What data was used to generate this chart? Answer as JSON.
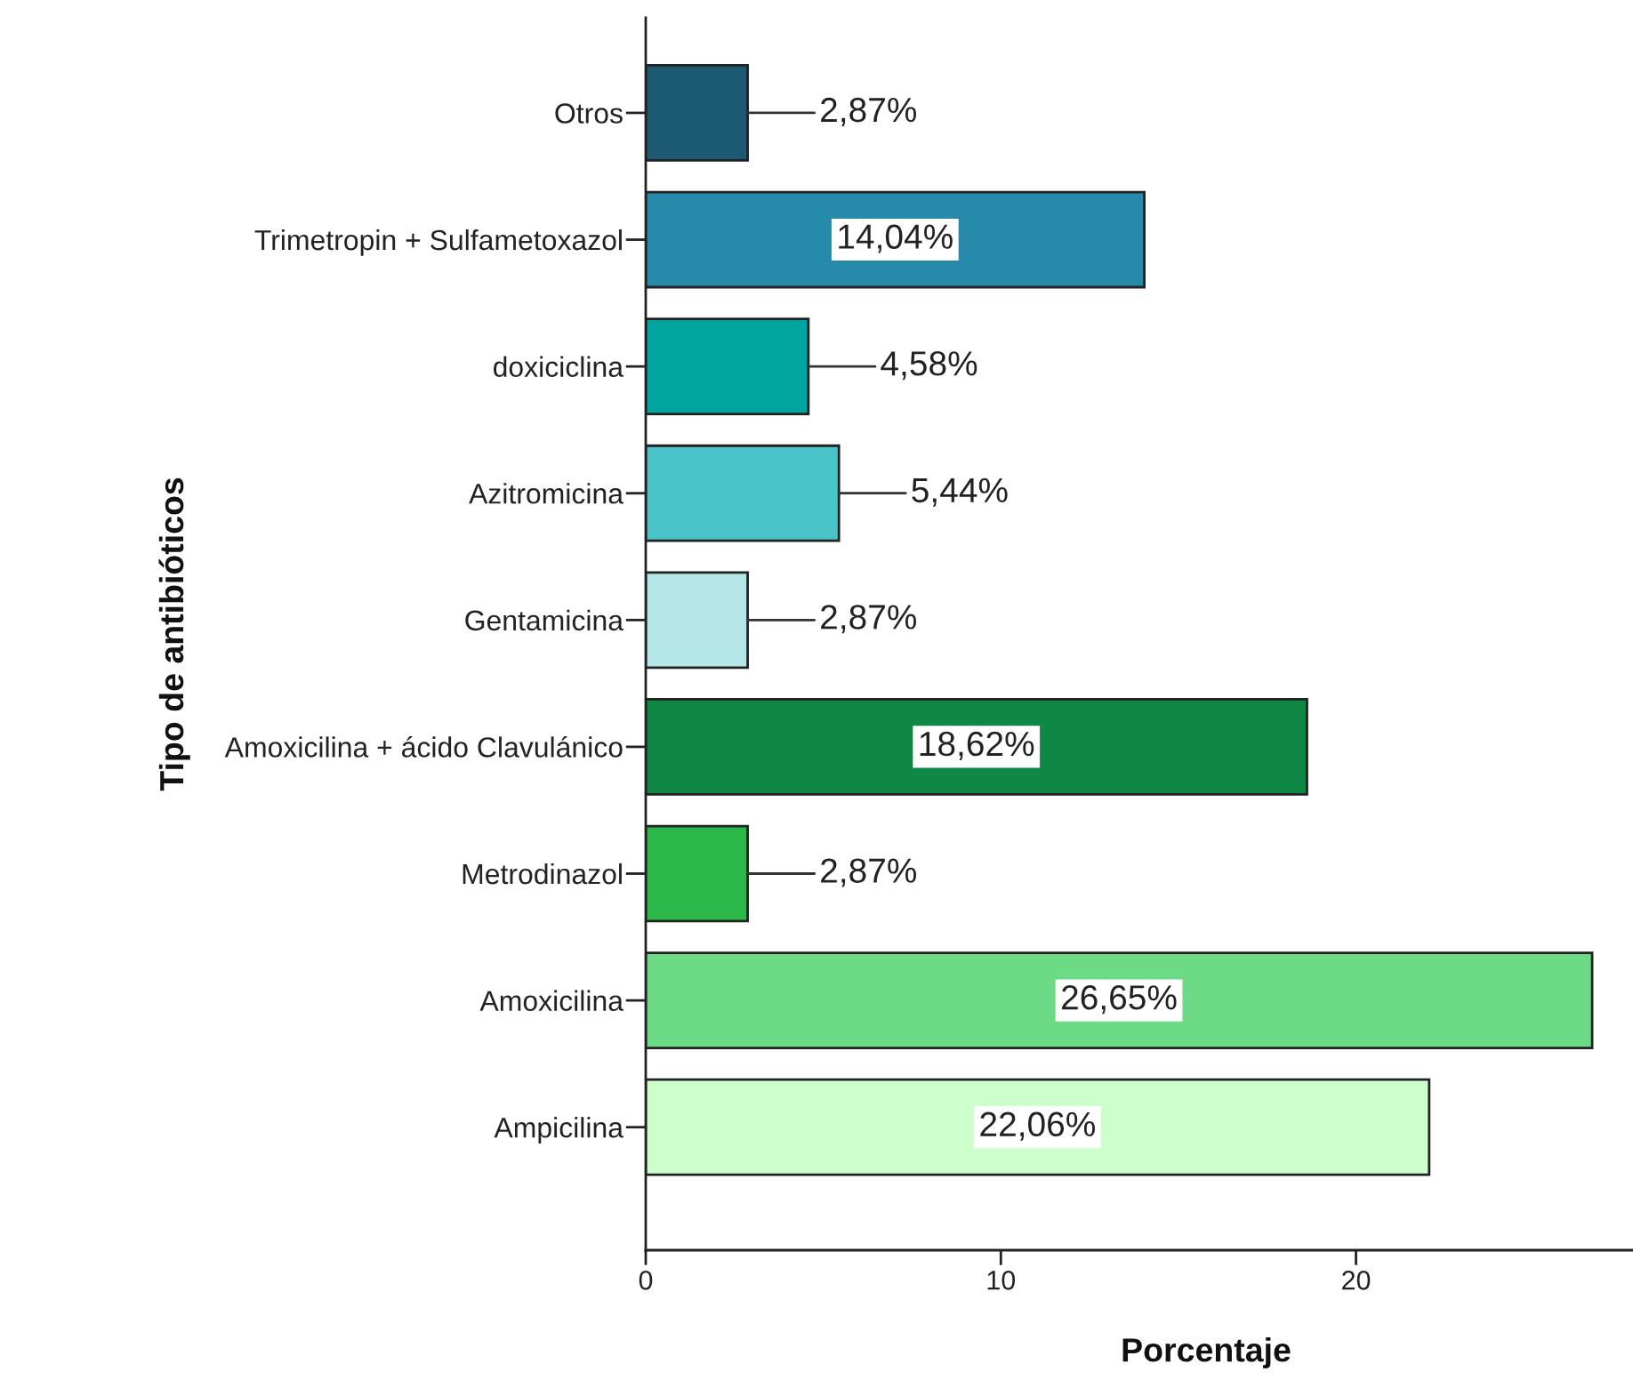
{
  "chart_data": {
    "type": "bar",
    "orientation": "horizontal",
    "xlabel": "Porcentaje",
    "ylabel": "Tipo de antibióticos",
    "categories": [
      "Otros",
      "Trimetropin + Sulfametoxazol",
      "doxiciclina",
      "Azitromicina",
      "Gentamicina",
      "Amoxicilina + ácido Clavulánico",
      "Metrodinazol",
      "Amoxicilina",
      "Ampicilina"
    ],
    "values": [
      2.87,
      14.04,
      4.58,
      5.44,
      2.87,
      18.62,
      2.87,
      26.65,
      22.06
    ],
    "colors": [
      "#1c5a72",
      "#268aab",
      "#00a5a0",
      "#49c3c8",
      "#b4e6e8",
      "#0f8845",
      "#2db84a",
      "#6ddb85",
      "#ccffcc"
    ],
    "value_labels": [
      "2,87%",
      "14,04%",
      "4,58%",
      "5,44%",
      "2,87%",
      "18,62%",
      "2,87%",
      "26,65%",
      "22,06%"
    ],
    "xlim": [
      0,
      27.8
    ],
    "xticks": [
      0,
      10,
      20
    ]
  }
}
